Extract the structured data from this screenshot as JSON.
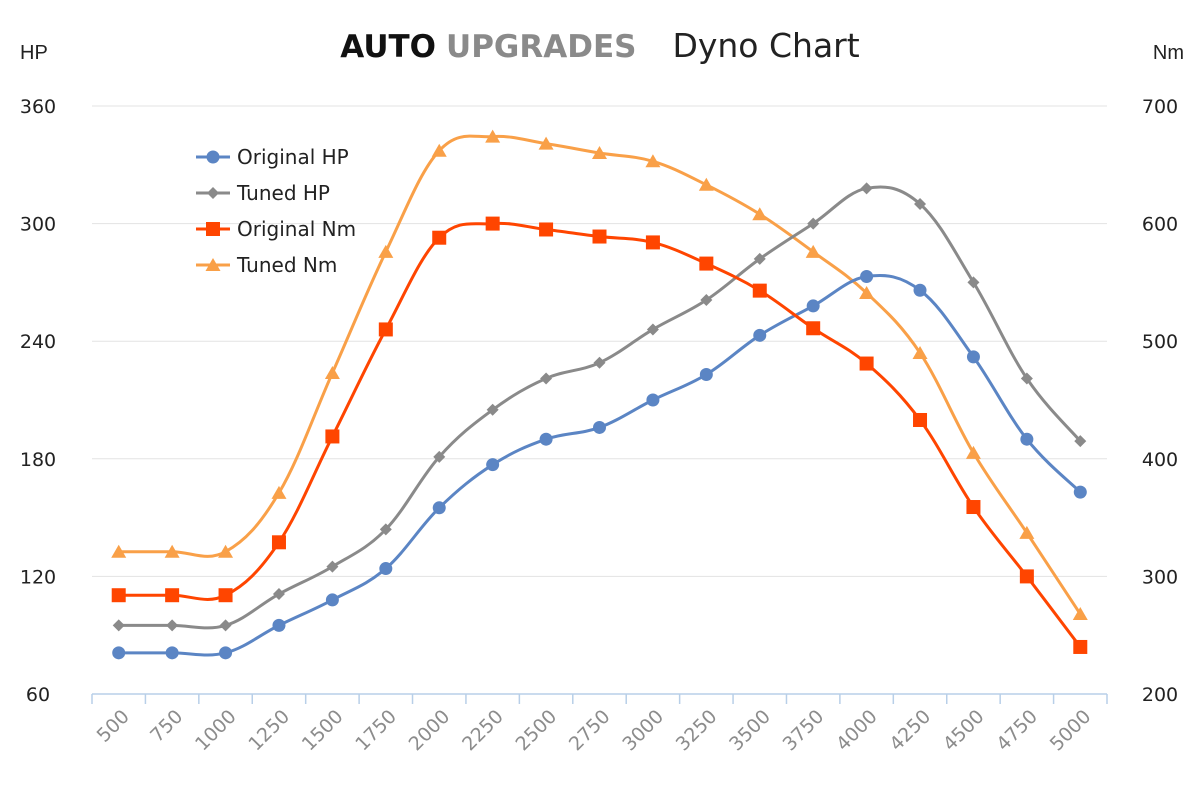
{
  "title": {
    "brand_bold": "AUTO",
    "brand_gray": "UPGRADES",
    "subtitle": "Dyno Chart"
  },
  "colors": {
    "original_hp": "#5b85c4",
    "tuned_hp": "#8a8a8a",
    "original_nm": "#ff4500",
    "tuned_nm": "#f9a048",
    "grid": "#e3e3e3",
    "axis": "#b8cfe8"
  },
  "chart_data": {
    "type": "line",
    "title": "AUTO UPGRADES Dyno Chart",
    "xlabel": "",
    "ylabel_left": "HP",
    "ylabel_right": "Nm",
    "x": [
      500,
      750,
      1000,
      1250,
      1500,
      1750,
      2000,
      2250,
      2500,
      2750,
      3000,
      3250,
      3500,
      3750,
      4000,
      4250,
      4500,
      4750,
      5000
    ],
    "x_tick_labels": [
      "500",
      "750",
      "1000",
      "1250",
      "1500",
      "1750",
      "2000",
      "2250",
      "2500",
      "2750",
      "3000",
      "3250",
      "3500",
      "3750",
      "4000",
      "4250",
      "4500",
      "4750",
      "5000"
    ],
    "ylim_left": [
      60,
      360
    ],
    "yticks_left": [
      "60",
      "120",
      "180",
      "240",
      "300",
      "360"
    ],
    "ylim_right": [
      200,
      700
    ],
    "yticks_right": [
      "200",
      "300",
      "400",
      "500",
      "600",
      "700"
    ],
    "grid": true,
    "legend_position": "top-left",
    "series": [
      {
        "name": "Original HP",
        "axis": "left",
        "marker": "circle",
        "color": "#5b85c4",
        "values": [
          81,
          81,
          81,
          95,
          108,
          124,
          155,
          177,
          190,
          196,
          210,
          223,
          243,
          258,
          273,
          266,
          232,
          190,
          163
        ]
      },
      {
        "name": "Tuned HP",
        "axis": "left",
        "marker": "diamond",
        "color": "#8a8a8a",
        "values": [
          95,
          95,
          95,
          111,
          125,
          144,
          181,
          205,
          221,
          229,
          246,
          261,
          282,
          300,
          318,
          310,
          270,
          221,
          189
        ]
      },
      {
        "name": "Original Nm",
        "axis": "right",
        "marker": "square",
        "color": "#ff4500",
        "values": [
          284,
          284,
          284,
          329,
          419,
          510,
          588,
          600,
          595,
          589,
          584,
          566,
          543,
          511,
          481,
          433,
          359,
          300,
          240
        ]
      },
      {
        "name": "Tuned Nm",
        "axis": "right",
        "marker": "triangle",
        "color": "#f9a048",
        "values": [
          321,
          321,
          321,
          371,
          473,
          576,
          662,
          674,
          668,
          660,
          653,
          633,
          608,
          576,
          541,
          490,
          405,
          337,
          268
        ]
      }
    ]
  }
}
